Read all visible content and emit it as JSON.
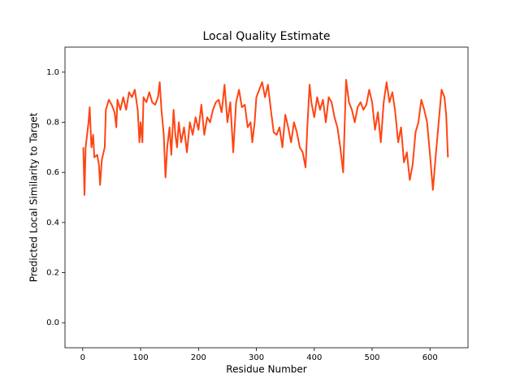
{
  "chart_data": {
    "type": "line",
    "title": "Local Quality Estimate",
    "x_label": "Residue Number",
    "y_label": "Predicted Local Similarity to Target",
    "xlim": [
      -30.65,
      665.65
    ],
    "ylim": [
      -0.1,
      1.1
    ],
    "xticks": [
      0,
      100,
      200,
      300,
      400,
      500,
      600
    ],
    "yticks": [
      {
        "value": 0,
        "label": "0.0"
      },
      0.2,
      0.4,
      0.6,
      0.8,
      {
        "value": 1,
        "label": "1.0"
      }
    ],
    "series": [
      {
        "color": "#ff4513",
        "x": [
          1,
          3,
          5,
          10,
          12,
          15,
          18,
          20,
          25,
          28,
          30,
          33,
          38,
          40,
          45,
          50,
          55,
          58,
          60,
          65,
          70,
          75,
          80,
          85,
          90,
          95,
          98,
          100,
          103,
          105,
          110,
          115,
          120,
          125,
          130,
          133,
          136,
          140,
          143,
          146,
          150,
          153,
          157,
          160,
          163,
          166,
          170,
          175,
          180,
          185,
          190,
          195,
          200,
          205,
          210,
          215,
          220,
          225,
          230,
          235,
          240,
          245,
          250,
          255,
          260,
          265,
          270,
          275,
          280,
          285,
          290,
          293,
          297,
          300,
          305,
          310,
          315,
          320,
          325,
          330,
          335,
          340,
          345,
          350,
          355,
          360,
          365,
          370,
          375,
          380,
          385,
          388,
          392,
          395,
          400,
          405,
          410,
          415,
          420,
          425,
          430,
          435,
          440,
          445,
          450,
          455,
          460,
          465,
          470,
          475,
          480,
          485,
          490,
          495,
          500,
          505,
          510,
          515,
          520,
          525,
          530,
          535,
          540,
          545,
          550,
          555,
          560,
          565,
          570,
          575,
          580,
          585,
          590,
          595,
          600,
          605,
          610,
          615,
          620,
          625,
          628,
          631
        ],
        "values": [
          0.7,
          0.51,
          0.7,
          0.8,
          0.86,
          0.7,
          0.75,
          0.66,
          0.67,
          0.63,
          0.55,
          0.65,
          0.7,
          0.85,
          0.89,
          0.87,
          0.84,
          0.78,
          0.89,
          0.85,
          0.9,
          0.85,
          0.92,
          0.9,
          0.93,
          0.85,
          0.72,
          0.8,
          0.72,
          0.9,
          0.88,
          0.92,
          0.88,
          0.87,
          0.9,
          0.96,
          0.85,
          0.75,
          0.58,
          0.7,
          0.78,
          0.67,
          0.85,
          0.75,
          0.7,
          0.8,
          0.72,
          0.78,
          0.68,
          0.8,
          0.75,
          0.82,
          0.77,
          0.87,
          0.75,
          0.82,
          0.8,
          0.85,
          0.88,
          0.89,
          0.84,
          0.95,
          0.8,
          0.88,
          0.68,
          0.88,
          0.93,
          0.86,
          0.87,
          0.78,
          0.8,
          0.72,
          0.8,
          0.9,
          0.93,
          0.96,
          0.9,
          0.95,
          0.85,
          0.76,
          0.75,
          0.78,
          0.7,
          0.83,
          0.78,
          0.72,
          0.8,
          0.76,
          0.7,
          0.68,
          0.62,
          0.78,
          0.95,
          0.88,
          0.82,
          0.9,
          0.85,
          0.89,
          0.8,
          0.9,
          0.88,
          0.82,
          0.78,
          0.7,
          0.6,
          0.97,
          0.88,
          0.85,
          0.8,
          0.86,
          0.88,
          0.85,
          0.87,
          0.93,
          0.88,
          0.77,
          0.84,
          0.72,
          0.88,
          0.96,
          0.88,
          0.92,
          0.84,
          0.72,
          0.78,
          0.64,
          0.68,
          0.57,
          0.63,
          0.76,
          0.8,
          0.89,
          0.85,
          0.8,
          0.67,
          0.53,
          0.67,
          0.8,
          0.93,
          0.9,
          0.83,
          0.66
        ]
      }
    ]
  }
}
